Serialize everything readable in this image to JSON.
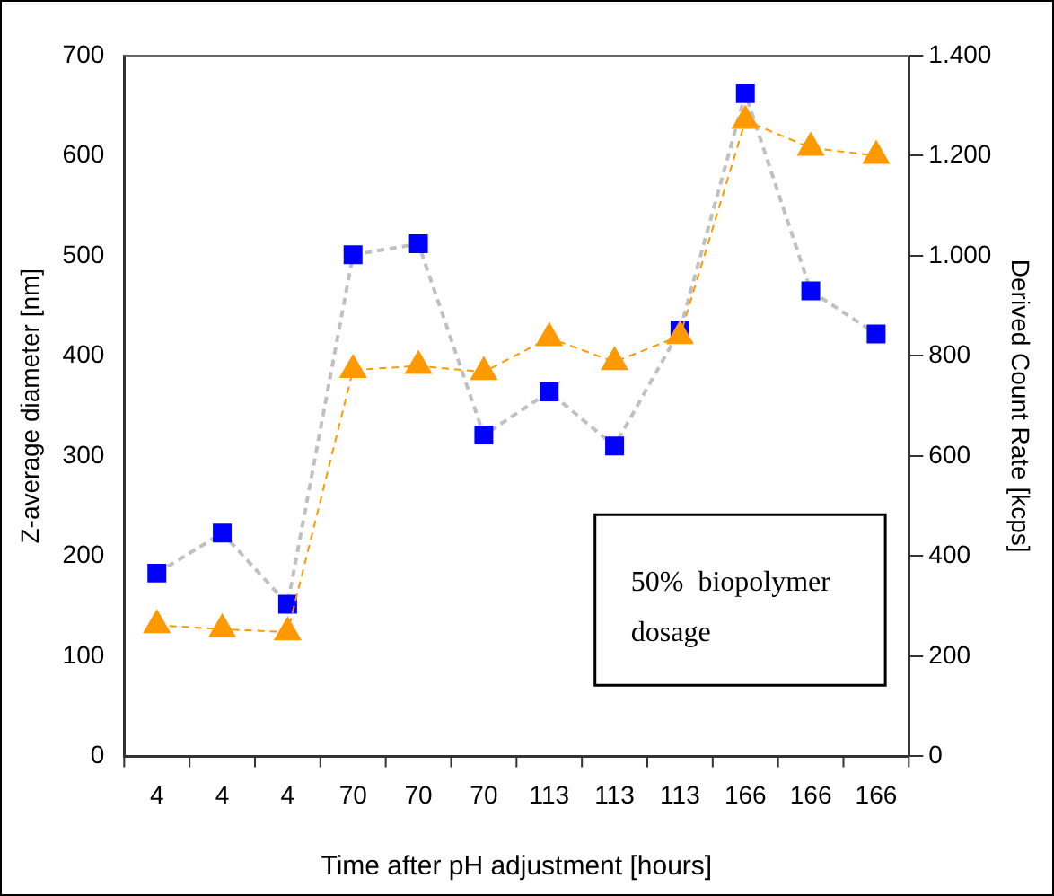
{
  "chart_data": {
    "type": "line",
    "xlabel": "Time after pH adjustment [hours]",
    "ylabel": "Z-average diameter [nm]",
    "y2label": "Derived Count Rate [kcps]",
    "categories": [
      "4",
      "4",
      "4",
      "70",
      "70",
      "70",
      "113",
      "113",
      "113",
      "166",
      "166",
      "166"
    ],
    "series": [
      {
        "color": "#0000ff",
        "marker": "square",
        "line_style": "dashed",
        "values": [
          183,
          223,
          152,
          501,
          512,
          321,
          364,
          310,
          426,
          662,
          465,
          422
        ]
      },
      {
        "color": "#ff9900",
        "marker": "triangle",
        "line_style": "dashed",
        "axis": "y2",
        "values": [
          262,
          254,
          248,
          772,
          780,
          768,
          836,
          788,
          840,
          1270,
          1216,
          1200
        ]
      }
    ],
    "ylim": [
      0,
      700
    ],
    "yticks": [
      0,
      100,
      200,
      300,
      400,
      500,
      600,
      700
    ],
    "y2lim": [
      0,
      1400
    ],
    "y2ticks": [
      0,
      200,
      400,
      600,
      800,
      {
        "value": 1000,
        "label": "1.000"
      },
      {
        "value": 1200,
        "label": "1.200"
      },
      {
        "value": 1400,
        "label": "1.400"
      }
    ],
    "grid": false,
    "legend": false,
    "annotations": [
      "50% biopolymer dosage"
    ]
  }
}
